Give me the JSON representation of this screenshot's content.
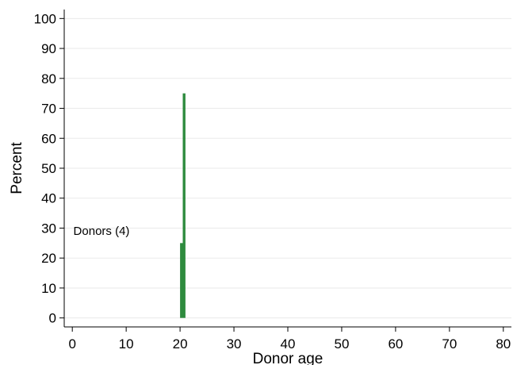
{
  "chart_data": {
    "type": "bar",
    "xlabel": "Donor age",
    "ylabel": "Percent",
    "xlim": [
      -1.5,
      81.5
    ],
    "ylim": [
      -3,
      103
    ],
    "xticks": [
      0,
      10,
      20,
      30,
      40,
      50,
      60,
      70,
      80
    ],
    "yticks": [
      0,
      10,
      20,
      30,
      40,
      50,
      60,
      70,
      80,
      90,
      100
    ],
    "grid": true,
    "bar_color": "#2e8b3e",
    "bar_width": 0.5,
    "bars": [
      {
        "x": 20.25,
        "value": 25
      },
      {
        "x": 20.75,
        "value": 75
      }
    ],
    "annotation": {
      "text": "Donors (4)",
      "x": 0.2,
      "y": 29
    }
  }
}
